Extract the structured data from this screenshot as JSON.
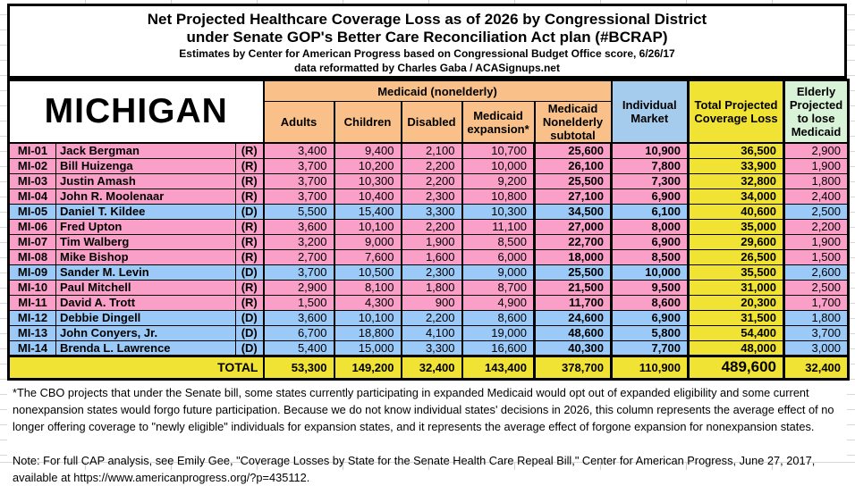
{
  "colors": {
    "medicaid_header": "#F9C089",
    "individual_header": "#A5CCEC",
    "total_header": "#F1E333",
    "elderly_header": "#D8F3D8",
    "republican_row": "#F99FC8",
    "democrat_row": "#9BCAF8",
    "total_row": "#F1E333"
  },
  "title": {
    "line1": "Net Projected Healthcare Coverage Loss as of 2026 by Congressional District",
    "line2": "under Senate GOP's Better Care Reconciliation Act plan (#BCRAP)",
    "line3": "Estimates by Center for American Progress based on Congressional Budget Office score, 6/26/17",
    "line4": "data reformatted by Charles Gaba / ACASignups.net"
  },
  "table": {
    "state": "MICHIGAN",
    "headers": {
      "medicaid_group": "Medicaid (nonelderly)",
      "adults": "Adults",
      "children": "Children",
      "disabled": "Disabled",
      "expansion": "Medicaid expansion*",
      "subtotal": "Medicaid Nonelderly subtotal",
      "individual": "Individual Market",
      "total": "Total Projected Coverage Loss",
      "elderly": "Elderly Projected to lose Medicaid"
    },
    "rows": [
      {
        "district": "MI-01",
        "name": "Jack Bergman",
        "party": "(R)",
        "adults": "3,400",
        "children": "9,400",
        "disabled": "2,100",
        "expansion": "10,700",
        "subtotal": "25,600",
        "individual": "10,900",
        "total": "36,500",
        "elderly": "2,900"
      },
      {
        "district": "MI-02",
        "name": "Bill Huizenga",
        "party": "(R)",
        "adults": "3,700",
        "children": "10,200",
        "disabled": "2,200",
        "expansion": "10,000",
        "subtotal": "26,100",
        "individual": "7,800",
        "total": "33,900",
        "elderly": "1,900"
      },
      {
        "district": "MI-03",
        "name": "Justin Amash",
        "party": "(R)",
        "adults": "3,700",
        "children": "10,300",
        "disabled": "2,200",
        "expansion": "9,200",
        "subtotal": "25,500",
        "individual": "7,300",
        "total": "32,800",
        "elderly": "1,800"
      },
      {
        "district": "MI-04",
        "name": "John R. Moolenaar",
        "party": "(R)",
        "adults": "3,700",
        "children": "10,400",
        "disabled": "2,300",
        "expansion": "10,800",
        "subtotal": "27,100",
        "individual": "6,900",
        "total": "34,000",
        "elderly": "2,400"
      },
      {
        "district": "MI-05",
        "name": "Daniel T. Kildee",
        "party": "(D)",
        "adults": "5,500",
        "children": "15,400",
        "disabled": "3,300",
        "expansion": "10,300",
        "subtotal": "34,500",
        "individual": "6,100",
        "total": "40,600",
        "elderly": "2,500"
      },
      {
        "district": "MI-06",
        "name": "Fred Upton",
        "party": "(R)",
        "adults": "3,600",
        "children": "10,100",
        "disabled": "2,200",
        "expansion": "11,100",
        "subtotal": "27,000",
        "individual": "8,000",
        "total": "35,000",
        "elderly": "2,200"
      },
      {
        "district": "MI-07",
        "name": "Tim Walberg",
        "party": "(R)",
        "adults": "3,200",
        "children": "9,000",
        "disabled": "1,900",
        "expansion": "8,500",
        "subtotal": "22,700",
        "individual": "6,900",
        "total": "29,600",
        "elderly": "1,900"
      },
      {
        "district": "MI-08",
        "name": "Mike Bishop",
        "party": "(R)",
        "adults": "2,700",
        "children": "7,600",
        "disabled": "1,600",
        "expansion": "6,000",
        "subtotal": "18,000",
        "individual": "8,500",
        "total": "26,500",
        "elderly": "1,500"
      },
      {
        "district": "MI-09",
        "name": "Sander M. Levin",
        "party": "(D)",
        "adults": "3,700",
        "children": "10,500",
        "disabled": "2,300",
        "expansion": "9,000",
        "subtotal": "25,500",
        "individual": "10,000",
        "total": "35,500",
        "elderly": "2,600"
      },
      {
        "district": "MI-10",
        "name": "Paul Mitchell",
        "party": "(R)",
        "adults": "2,900",
        "children": "8,100",
        "disabled": "1,800",
        "expansion": "8,700",
        "subtotal": "21,500",
        "individual": "9,500",
        "total": "31,000",
        "elderly": "2,500"
      },
      {
        "district": "MI-11",
        "name": "David A. Trott",
        "party": "(R)",
        "adults": "1,500",
        "children": "4,300",
        "disabled": "900",
        "expansion": "4,900",
        "subtotal": "11,700",
        "individual": "8,600",
        "total": "20,300",
        "elderly": "1,700"
      },
      {
        "district": "MI-12",
        "name": "Debbie Dingell",
        "party": "(D)",
        "adults": "3,600",
        "children": "10,100",
        "disabled": "2,200",
        "expansion": "8,600",
        "subtotal": "24,600",
        "individual": "6,900",
        "total": "31,500",
        "elderly": "1,800"
      },
      {
        "district": "MI-13",
        "name": "John Conyers, Jr.",
        "party": "(D)",
        "adults": "6,700",
        "children": "18,800",
        "disabled": "4,100",
        "expansion": "19,000",
        "subtotal": "48,600",
        "individual": "5,800",
        "total": "54,400",
        "elderly": "3,700"
      },
      {
        "district": "MI-14",
        "name": "Brenda L. Lawrence",
        "party": "(D)",
        "adults": "5,400",
        "children": "15,000",
        "disabled": "3,300",
        "expansion": "16,600",
        "subtotal": "40,300",
        "individual": "7,700",
        "total": "48,000",
        "elderly": "3,000"
      }
    ],
    "total": {
      "label": "TOTAL",
      "adults": "53,300",
      "children": "149,200",
      "disabled": "32,400",
      "expansion": "143,400",
      "subtotal": "378,700",
      "individual": "110,900",
      "total": "489,600",
      "elderly": "32,400"
    }
  },
  "footnotes": {
    "asterisk_note": "*The CBO projects that under the Senate bill, some states currently participating in expanded Medicaid would opt out of expanded eligibility and some current nonexpansion states would forgo future participation. Because we do not know individual states' decisions in 2026, this column represents the average effect of no longer offering coverage to \"newly eligible\" individuals for expansion states, and it represents the average effect of forgone expansion for nonexpansion states.",
    "cap_note": "Note: For full CAP analysis, see Emily Gee, \"Coverage Losses by State for the Senate Health Care Repeal Bill,\" Center for American Progress, June 27, 2017, available at https://www.americanprogress.org/?p=435112."
  }
}
